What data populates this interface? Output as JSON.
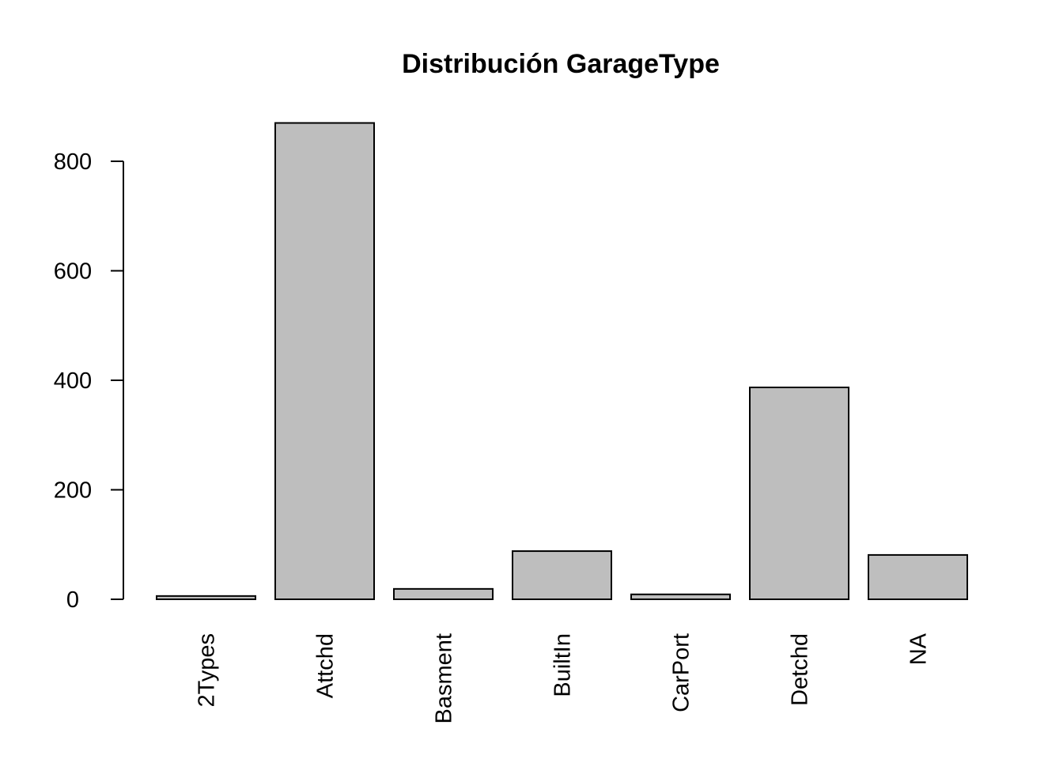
{
  "chart_data": {
    "type": "bar",
    "title": "Distribución GarageType",
    "xlabel": "",
    "ylabel": "",
    "categories": [
      "2Types",
      "Attchd",
      "Basment",
      "BuiltIn",
      "CarPort",
      "Detchd",
      "NA"
    ],
    "values": [
      6,
      870,
      19,
      88,
      9,
      387,
      81
    ],
    "yticks": [
      0,
      200,
      400,
      600,
      800
    ],
    "ylim": [
      0,
      870
    ],
    "bar_color": "#bebebe",
    "bar_border": "#000000",
    "grid": false,
    "legend": "none"
  }
}
